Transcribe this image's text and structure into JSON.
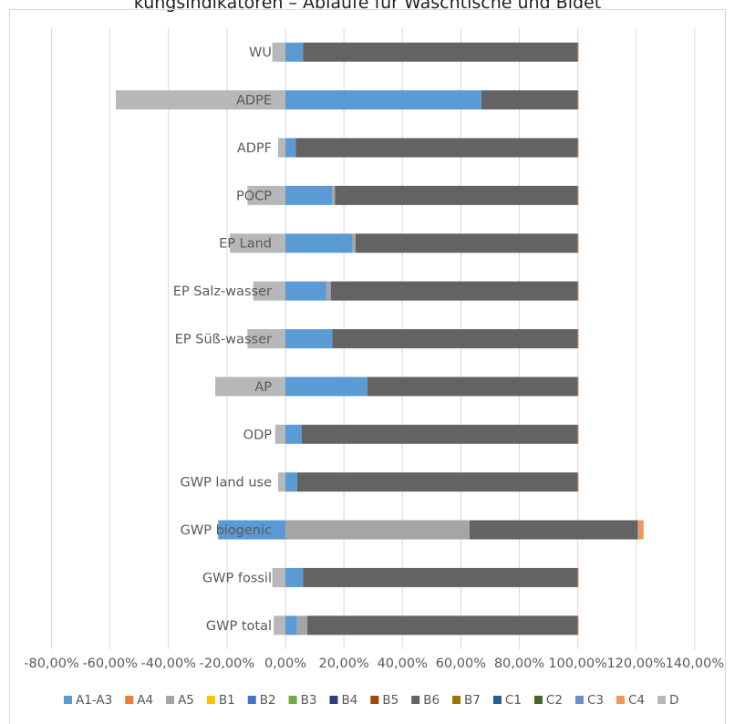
{
  "chart_data": {
    "type": "bar",
    "orientation": "horizontal",
    "stacked": true,
    "title": "kungsindikatoren – Abläufe für Waschtische und Bidet",
    "xlabel": "",
    "ylabel": "",
    "xlim": [
      -80,
      140
    ],
    "x_ticks": [
      -80,
      -60,
      -40,
      -20,
      0,
      20,
      40,
      60,
      80,
      100,
      120,
      140
    ],
    "x_tick_labels": [
      "-80,00%",
      "-60,00%",
      "-40,00%",
      "-20,00%",
      "0,00%",
      "20,00%",
      "40,00%",
      "60,00%",
      "80,00%",
      "100,00%",
      "120,00%",
      "140,00%"
    ],
    "grid": "vertical",
    "legend_position": "bottom",
    "categories": [
      "WU",
      "ADPE",
      "ADPF",
      "POCP",
      "EP Land",
      "EP Salz-wasser",
      "EP Süß-wasser",
      "AP",
      "ODP",
      "GWP land use",
      "GWP biogenic",
      "GWP fossil",
      "GWP total"
    ],
    "series": [
      {
        "name": "A1-A3",
        "color": "#5b9bd5",
        "values": [
          6,
          67,
          3.5,
          16,
          23,
          14,
          16,
          28,
          5.5,
          4,
          -23,
          6,
          4
        ]
      },
      {
        "name": "A4",
        "color": "#ed7d31",
        "values": [
          0,
          0,
          0,
          0,
          0,
          0,
          0,
          0,
          0,
          0,
          0,
          0,
          0
        ]
      },
      {
        "name": "A5",
        "color": "#a5a5a5",
        "values": [
          0,
          0,
          0,
          1,
          1,
          1.5,
          0,
          0,
          0,
          0,
          63,
          0,
          3.5
        ]
      },
      {
        "name": "B1",
        "color": "#ffc000",
        "values": [
          0,
          0,
          0,
          0,
          0,
          0,
          0,
          0,
          0,
          0,
          0,
          0,
          0
        ]
      },
      {
        "name": "B2",
        "color": "#4472c4",
        "values": [
          0,
          0,
          0,
          0,
          0,
          0,
          0,
          0,
          0,
          0,
          0,
          0,
          0
        ]
      },
      {
        "name": "B3",
        "color": "#70ad47",
        "values": [
          0,
          0,
          0,
          0,
          0,
          0,
          0,
          0,
          0,
          0,
          0,
          0,
          0
        ]
      },
      {
        "name": "B4",
        "color": "#264478",
        "values": [
          0,
          0,
          0,
          0,
          0,
          0,
          0,
          0,
          0,
          0,
          0,
          0,
          0
        ]
      },
      {
        "name": "B5",
        "color": "#9e480e",
        "values": [
          0,
          0,
          0,
          0,
          0,
          0,
          0,
          0,
          0,
          0,
          0,
          0,
          0
        ]
      },
      {
        "name": "B6",
        "color": "#636363",
        "values": [
          94,
          33,
          96.5,
          83,
          76,
          84.5,
          84,
          72,
          94.5,
          96,
          57,
          94,
          92.5
        ]
      },
      {
        "name": "B7",
        "color": "#997300",
        "values": [
          0,
          0,
          0,
          0,
          0,
          0,
          0,
          0,
          0,
          0,
          0,
          0,
          0
        ]
      },
      {
        "name": "C1",
        "color": "#255e91",
        "values": [
          0,
          0,
          0,
          0,
          0,
          0,
          0,
          0,
          0,
          0,
          0.5,
          0,
          0
        ]
      },
      {
        "name": "C2",
        "color": "#43682b",
        "values": [
          0,
          0,
          0,
          0,
          0,
          0,
          0,
          0,
          0,
          0,
          0,
          0,
          0
        ]
      },
      {
        "name": "C3",
        "color": "#698ed0",
        "values": [
          0,
          0,
          0,
          0,
          0,
          0,
          0,
          0,
          0,
          0,
          0,
          0,
          0
        ]
      },
      {
        "name": "C4",
        "color": "#f1975a",
        "values": [
          0.3,
          0.3,
          0.3,
          0.3,
          0.3,
          0.3,
          0.3,
          0.3,
          0.3,
          0.3,
          2,
          0.3,
          0.3
        ]
      },
      {
        "name": "D",
        "color": "#b7b7b7",
        "values": [
          -4.5,
          -58,
          -2.5,
          -13,
          -19,
          -11,
          -13,
          -24,
          -3.5,
          -2.5,
          0,
          -4.5,
          -4
        ]
      }
    ]
  }
}
